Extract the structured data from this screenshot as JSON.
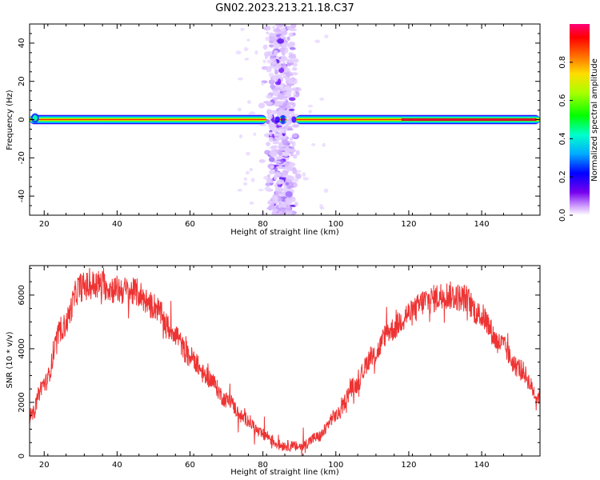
{
  "title": "GN02.2023.213.21.18.C37",
  "chart_data": [
    {
      "type": "heatmap",
      "title": "",
      "xlabel": "Height of straight line (km)",
      "ylabel": "Frequency (Hz)",
      "xlim": [
        16,
        156
      ],
      "ylim": [
        -50,
        50
      ],
      "xticks": [
        20,
        40,
        60,
        80,
        100,
        120,
        140
      ],
      "yticks": [
        -40,
        -20,
        0,
        20,
        40
      ],
      "colorbar": {
        "label": "Normalized spectral amplitude",
        "range": [
          0,
          1
        ],
        "ticks": [
          "0.0",
          "0.2",
          "0.4",
          "0.6",
          "0.8"
        ]
      },
      "features": {
        "band_frequency_hz": 0,
        "band_halfwidth_hz": 2.5,
        "vertical_scatter_height_km": [
          79,
          91
        ]
      },
      "grid": false
    },
    {
      "type": "line",
      "title": "",
      "xlabel": "Height of straight line (km)",
      "ylabel": "SNR (10 * v/v)",
      "xlim": [
        16,
        156
      ],
      "ylim": [
        0,
        7100
      ],
      "xticks": [
        20,
        40,
        60,
        80,
        100,
        120,
        140
      ],
      "yticks": [
        0,
        2000,
        4000,
        6000
      ],
      "series": [
        {
          "color": "#ee3333",
          "x": [
            16,
            20,
            25,
            30,
            35,
            40,
            45,
            50,
            55,
            60,
            65,
            70,
            75,
            80,
            85,
            90,
            95,
            100,
            105,
            110,
            115,
            120,
            125,
            130,
            135,
            140,
            145,
            150,
            156
          ],
          "values": [
            1400,
            2700,
            4800,
            6300,
            6400,
            6200,
            6100,
            5600,
            4700,
            3700,
            2900,
            2100,
            1400,
            800,
            400,
            350,
            700,
            1500,
            2600,
            3700,
            4700,
            5300,
            5800,
            6000,
            5900,
            5200,
            4200,
            3300,
            2200
          ]
        }
      ],
      "grid": false
    }
  ]
}
